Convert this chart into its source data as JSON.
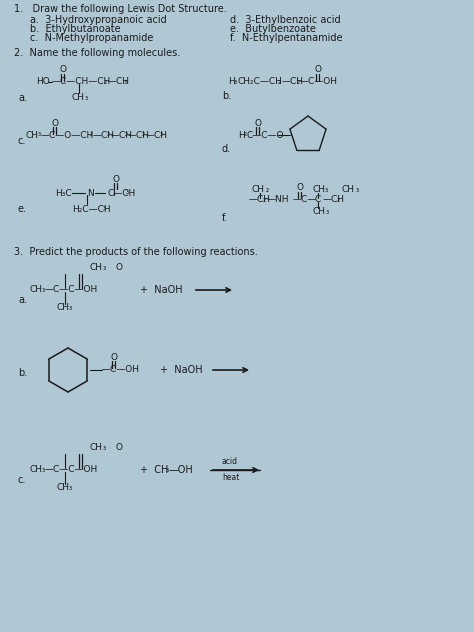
{
  "background_color": "#b0c8d4",
  "text_color": "#1a1a1a",
  "fig_width": 4.74,
  "fig_height": 6.32,
  "dpi": 100,
  "fs": 7.0,
  "cfs": 6.5,
  "sfs": 5.5,
  "section1_title": "1.   Draw the following Lewis Dot Structure.",
  "s1_left": [
    "a.  3-Hydroxypropanoic acid",
    "b.  Ethylbutanoate",
    "c.  N-Methylpropanamide"
  ],
  "s1_right": [
    "d.  3-Ethylbenzoic acid",
    "e.  Butylbenzoate",
    "f.  N-Ethylpentanamide"
  ],
  "section2_title": "2.  Name the following molecules.",
  "section3_title": "3.  Predict the products of the following reactions."
}
